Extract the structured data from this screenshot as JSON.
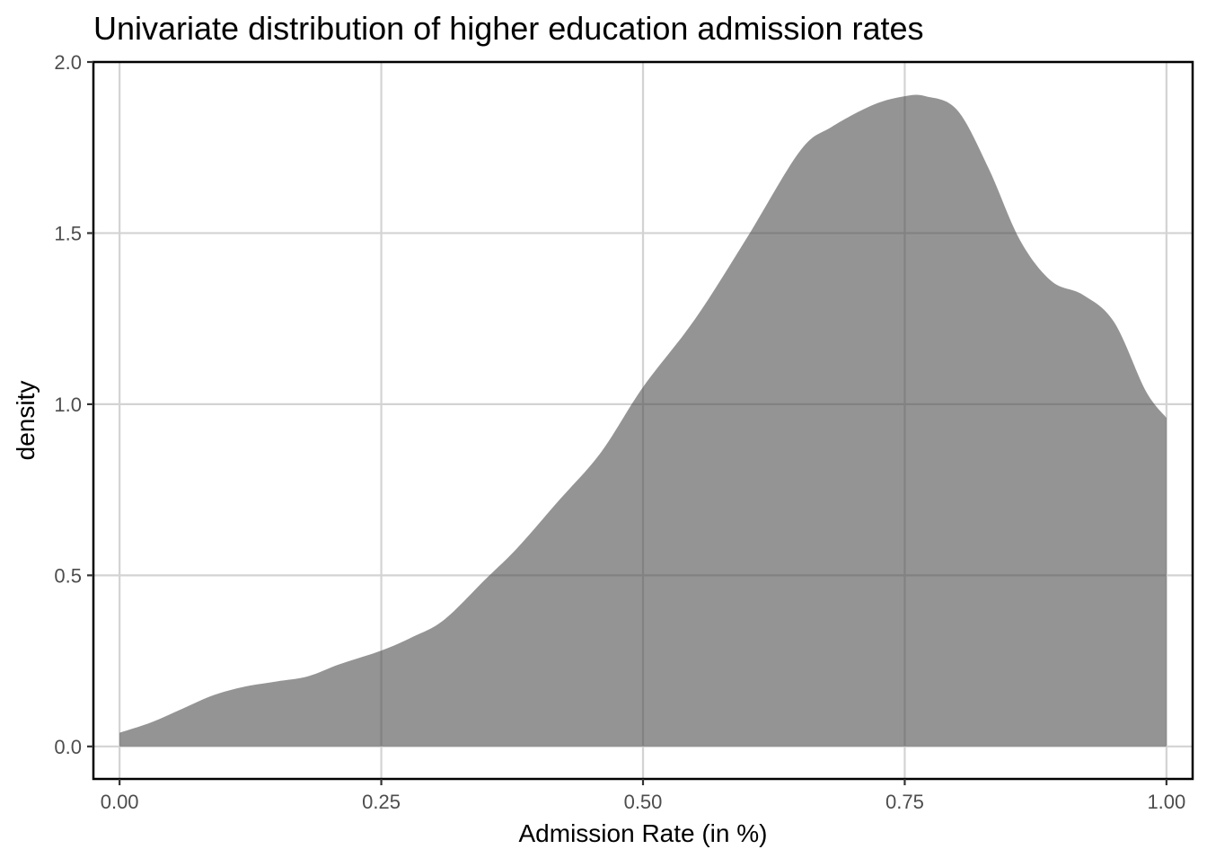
{
  "chart_data": {
    "type": "area",
    "title": "Univariate distribution of higher education admission rates",
    "xlabel": "Admission Rate (in %)",
    "ylabel": "density",
    "xlim": [
      -0.025,
      1.025
    ],
    "ylim": [
      -0.095,
      2.0
    ],
    "x_ticks": [
      0,
      0.25,
      0.5,
      0.75,
      1.0
    ],
    "x_tick_labels": [
      "0.00",
      "0.25",
      "0.50",
      "0.75",
      "1.00"
    ],
    "y_ticks": [
      0,
      0.5,
      1.0,
      1.5,
      2.0
    ],
    "y_tick_labels": [
      "0.0",
      "0.5",
      "1.0",
      "1.5",
      "2.0"
    ],
    "grid": true,
    "fill_color": "#4d4d4d",
    "fill_opacity": 0.6,
    "series": [
      {
        "x": [
          0.0,
          0.03,
          0.06,
          0.09,
          0.12,
          0.15,
          0.18,
          0.21,
          0.25,
          0.28,
          0.31,
          0.35,
          0.38,
          0.42,
          0.46,
          0.5,
          0.55,
          0.6,
          0.65,
          0.68,
          0.72,
          0.75,
          0.77,
          0.8,
          0.83,
          0.86,
          0.89,
          0.92,
          0.95,
          0.98,
          1.0
        ],
        "y": [
          0.04,
          0.07,
          0.11,
          0.15,
          0.175,
          0.19,
          0.205,
          0.24,
          0.28,
          0.32,
          0.37,
          0.49,
          0.58,
          0.72,
          0.86,
          1.05,
          1.25,
          1.49,
          1.74,
          1.81,
          1.875,
          1.9,
          1.9,
          1.86,
          1.69,
          1.48,
          1.36,
          1.32,
          1.24,
          1.04,
          0.96
        ]
      }
    ]
  }
}
